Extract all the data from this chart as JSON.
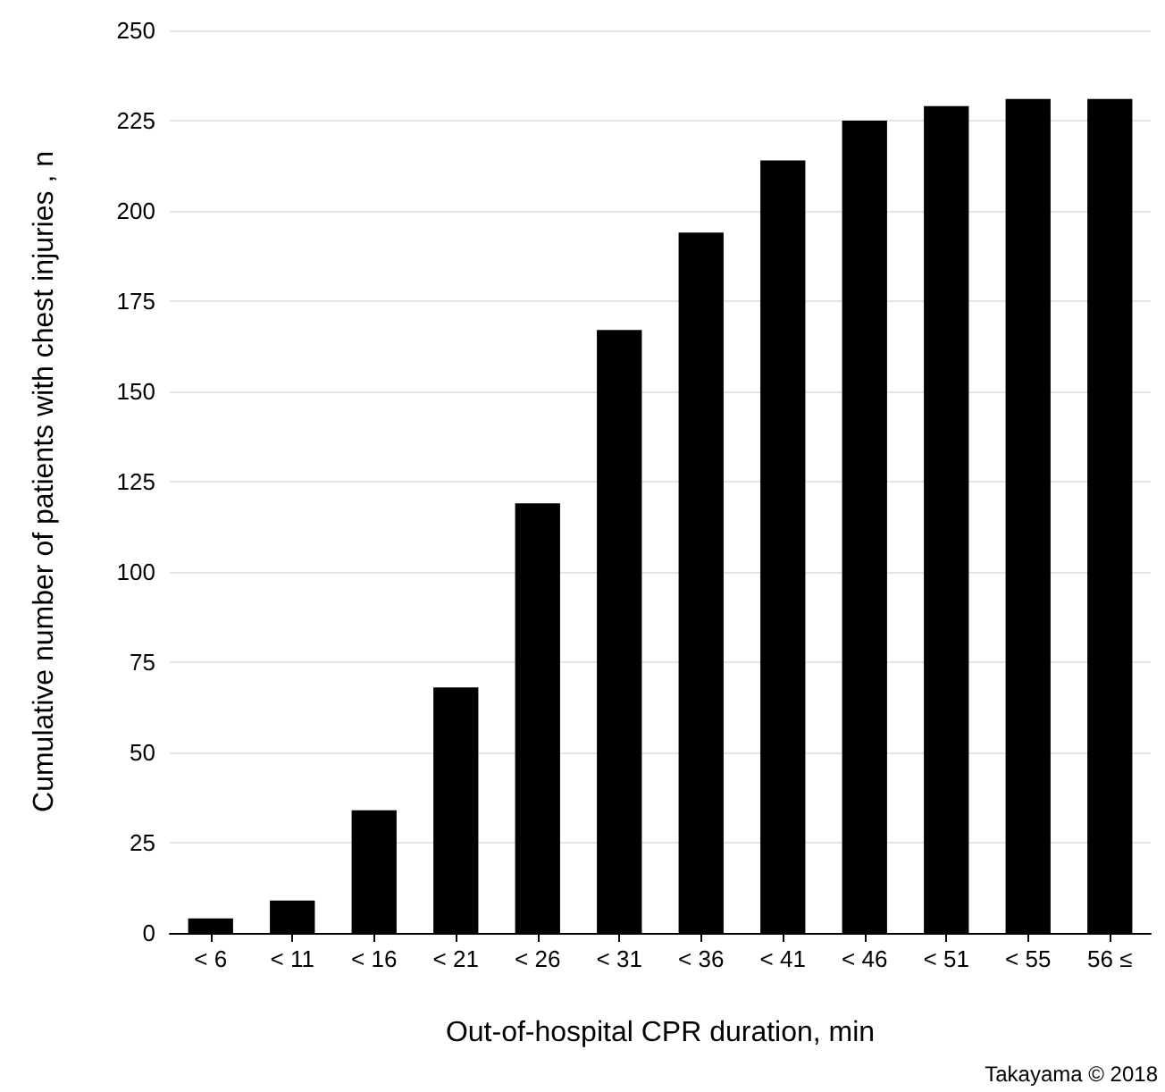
{
  "chart_data": {
    "type": "bar",
    "categories": [
      "< 6",
      "< 11",
      "< 16",
      "< 21",
      "< 26",
      "< 31",
      "< 36",
      "< 41",
      "< 46",
      "< 51",
      "< 55",
      "56 ≤"
    ],
    "values": [
      4,
      9,
      34,
      68,
      119,
      167,
      194,
      214,
      225,
      229,
      231,
      231
    ],
    "color": "#000000",
    "xlabel": "Out-of-hospital CPR duration, min",
    "ylabel": "Cumulative number of patients with chest injuries , n",
    "ylim": [
      0,
      250
    ],
    "yticks": [
      0,
      25,
      50,
      75,
      100,
      125,
      150,
      175,
      200,
      225,
      250
    ],
    "grid": "y",
    "annotations": [
      "Takayama © 2018"
    ]
  }
}
